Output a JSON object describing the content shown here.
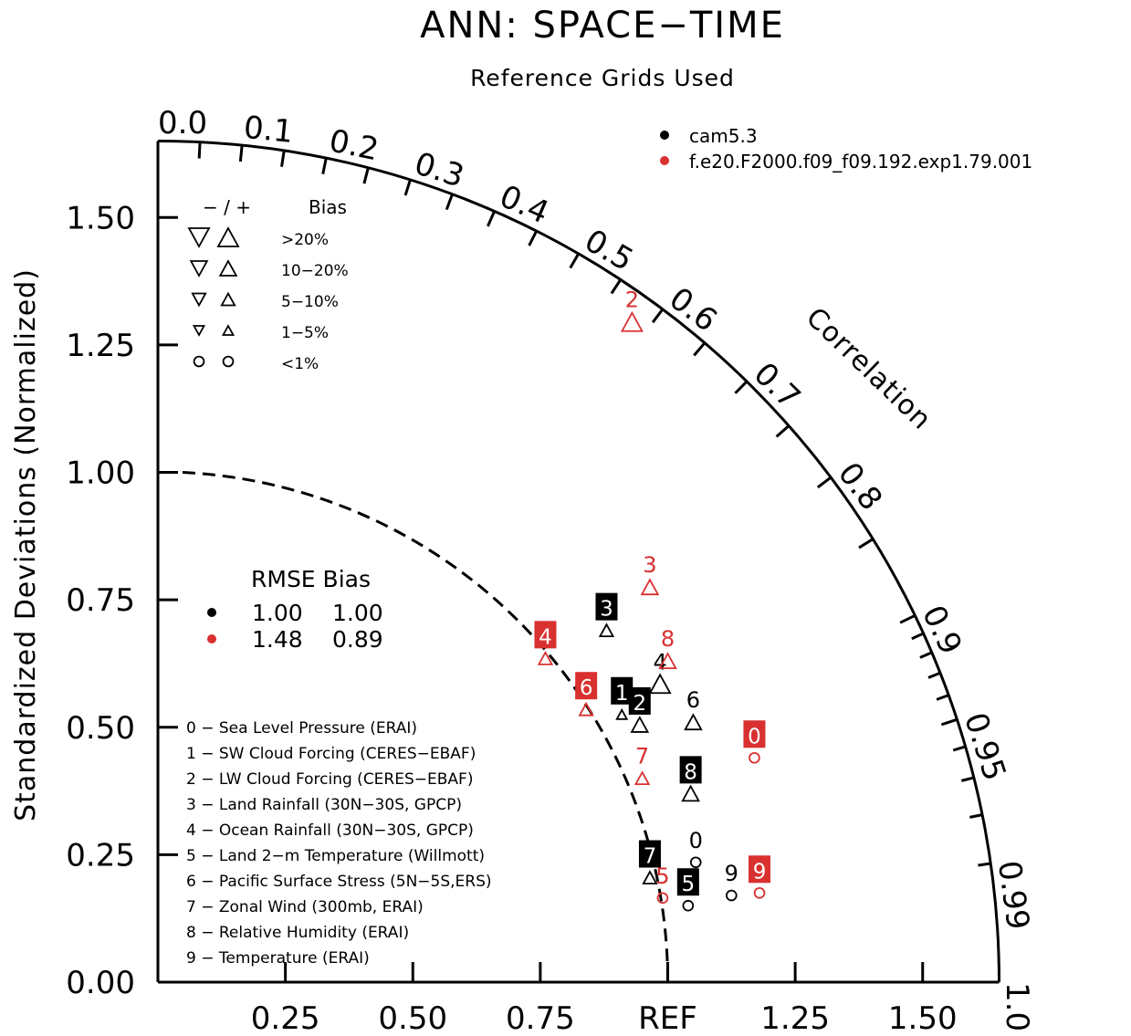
{
  "title": "ANN: SPACE−TIME",
  "subtitle": "Reference Grids Used",
  "colors": {
    "case0": "#000000",
    "case1": "#d93030"
  },
  "legend_cases": [
    {
      "name": "cam5.3",
      "color": "#000000"
    },
    {
      "name": "f.e20.F2000.f09_f09.192.exp1.79.001",
      "color": "#d93030"
    }
  ],
  "bias_legend": {
    "header_sign": "− / +",
    "header_label": "Bias",
    "rows": [
      {
        "label": ">20%",
        "symbol": "triangle",
        "size": 1.0
      },
      {
        "label": "10−20%",
        "symbol": "triangle",
        "size": 0.8
      },
      {
        "label": "5−10%",
        "symbol": "triangle",
        "size": 0.65
      },
      {
        "label": "1−5%",
        "symbol": "triangle",
        "size": 0.5
      },
      {
        "label": "<1%",
        "symbol": "circle",
        "size": 0.6
      }
    ]
  },
  "rmse_legend": {
    "header": "RMSE Bias",
    "rows": [
      {
        "rmse": "1.00",
        "bias": "1.00",
        "color": "#000000"
      },
      {
        "rmse": "1.48",
        "bias": "0.89",
        "color": "#d93030"
      }
    ]
  },
  "variables": [
    "0 − Sea Level Pressure (ERAI)",
    "1 − SW Cloud Forcing (CERES−EBAF)",
    "2 − LW Cloud Forcing (CERES−EBAF)",
    "3 − Land Rainfall (30N−30S, GPCP)",
    "4 − Ocean Rainfall (30N−30S, GPCP)",
    "5 − Land 2−m Temperature (Willmott)",
    "6 − Pacific Surface Stress (5N−5S,ERS)",
    "7 − Zonal Wind (300mb, ERAI)",
    "8 − Relative Humidity (ERAI)",
    "9 − Temperature (ERAI)"
  ],
  "chart_data": {
    "type": "scatter",
    "title": "ANN: SPACE−TIME",
    "subtitle": "Reference Grids Used",
    "ylabel": "Standardized Deviations (Normalized)",
    "correlation_label": "Correlation",
    "x_ticks": [
      "0.25",
      "0.50",
      "0.75",
      "REF",
      "1.25",
      "1.50"
    ],
    "x_tick_values": [
      0.25,
      0.5,
      0.75,
      1.0,
      1.25,
      1.5
    ],
    "y_ticks": [
      "0.00",
      "0.25",
      "0.50",
      "0.75",
      "1.00",
      "1.25",
      "1.50"
    ],
    "y_tick_values": [
      0.0,
      0.25,
      0.5,
      0.75,
      1.0,
      1.25,
      1.5
    ],
    "correlation_ticks": [
      "0.0",
      "0.1",
      "0.2",
      "0.3",
      "0.4",
      "0.5",
      "0.6",
      "0.7",
      "0.8",
      "0.9",
      "0.95",
      "0.99",
      "1.0"
    ],
    "correlation_tick_values": [
      0.0,
      0.1,
      0.2,
      0.3,
      0.4,
      0.5,
      0.6,
      0.7,
      0.8,
      0.9,
      0.95,
      0.99,
      1.0
    ],
    "std_max": 1.65,
    "ref_std": 1.0,
    "series": [
      {
        "name": "cam5.3",
        "color": "#000000",
        "points": [
          {
            "id": "0",
            "x": 1.055,
            "y": 0.235,
            "bias": "circle",
            "size": 0.6,
            "boxed": false
          },
          {
            "id": "1",
            "x": 0.91,
            "y": 0.525,
            "bias": "triangle",
            "size": 0.5,
            "boxed": true
          },
          {
            "id": "2",
            "x": 0.945,
            "y": 0.505,
            "bias": "triangle",
            "size": 0.8,
            "boxed": true
          },
          {
            "id": "3",
            "x": 0.88,
            "y": 0.69,
            "bias": "triangle",
            "size": 0.65,
            "boxed": true
          },
          {
            "id": "4",
            "x": 0.985,
            "y": 0.585,
            "bias": "triangle",
            "size": 1.0,
            "boxed": false
          },
          {
            "id": "5",
            "x": 1.04,
            "y": 0.15,
            "bias": "circle",
            "size": 0.6,
            "boxed": true
          },
          {
            "id": "6",
            "x": 1.05,
            "y": 0.51,
            "bias": "triangle",
            "size": 0.8,
            "boxed": false
          },
          {
            "id": "7",
            "x": 0.965,
            "y": 0.205,
            "bias": "triangle",
            "size": 0.65,
            "boxed": true
          },
          {
            "id": "8",
            "x": 1.045,
            "y": 0.37,
            "bias": "triangle",
            "size": 0.8,
            "boxed": true
          },
          {
            "id": "9",
            "x": 1.125,
            "y": 0.17,
            "bias": "circle",
            "size": 0.6,
            "boxed": false
          }
        ]
      },
      {
        "name": "f.e20.F2000.f09_f09.192.exp1.79.001",
        "color": "#d93030",
        "points": [
          {
            "id": "0",
            "x": 1.17,
            "y": 0.44,
            "bias": "circle",
            "size": 0.6,
            "boxed": true
          },
          {
            "id": "2",
            "x": 0.93,
            "y": 1.295,
            "bias": "triangle",
            "size": 1.0,
            "boxed": false
          },
          {
            "id": "3",
            "x": 0.965,
            "y": 0.775,
            "bias": "triangle",
            "size": 0.8,
            "boxed": false
          },
          {
            "id": "4",
            "x": 0.76,
            "y": 0.635,
            "bias": "triangle",
            "size": 0.65,
            "boxed": true
          },
          {
            "id": "5",
            "x": 0.99,
            "y": 0.165,
            "bias": "circle",
            "size": 0.6,
            "boxed": false
          },
          {
            "id": "6",
            "x": 0.84,
            "y": 0.535,
            "bias": "triangle",
            "size": 0.65,
            "boxed": true
          },
          {
            "id": "7",
            "x": 0.95,
            "y": 0.4,
            "bias": "triangle",
            "size": 0.65,
            "boxed": false
          },
          {
            "id": "8",
            "x": 1.0,
            "y": 0.63,
            "bias": "triangle",
            "size": 0.8,
            "boxed": false
          },
          {
            "id": "9",
            "x": 1.18,
            "y": 0.175,
            "bias": "circle",
            "size": 0.6,
            "boxed": true
          }
        ]
      }
    ]
  }
}
